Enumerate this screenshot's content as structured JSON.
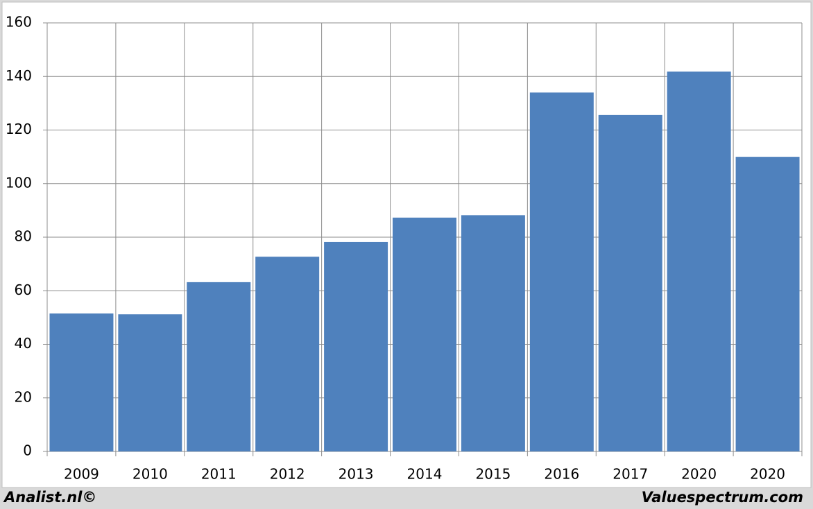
{
  "chart_data": {
    "type": "bar",
    "categories": [
      "2009",
      "2010",
      "2011",
      "2012",
      "2013",
      "2014",
      "2015",
      "2016",
      "2017",
      "2020",
      "2020"
    ],
    "values": [
      51.5,
      51.2,
      63.2,
      72.7,
      78.2,
      87.3,
      88.2,
      134,
      125.6,
      141.8,
      110
    ],
    "color": "#4f81bd",
    "ylim": [
      0,
      160
    ],
    "yticks": [
      0,
      20,
      40,
      60,
      80,
      100,
      120,
      140,
      160
    ],
    "grid": true,
    "footer_left": "Analist.nl©",
    "footer_right": "Valuespectrum.com"
  }
}
